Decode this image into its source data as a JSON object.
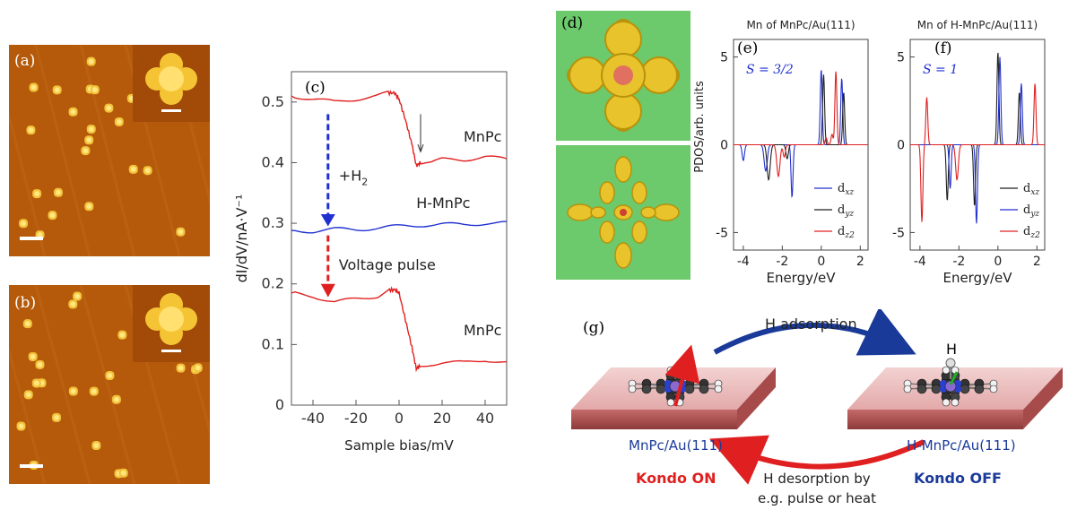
{
  "panels": {
    "a": {
      "label": "(a)"
    },
    "b": {
      "label": "(b)"
    },
    "c": {
      "label": "(c)"
    },
    "d": {
      "label": "(d)"
    },
    "e": {
      "label": "(e)"
    },
    "f": {
      "label": "(f)"
    },
    "g": {
      "label": "(g)"
    }
  },
  "colors": {
    "stm_bg": "#b55a0b",
    "stm_spot": "#ffd84a",
    "red": "#e02020",
    "blue": "#2030d0",
    "black": "#202020",
    "dft_bg": "#6cc96c"
  },
  "panel_c": {
    "annotations": {
      "mnpc_top": "MnPc",
      "h2": "+H",
      "h2_sub": "2",
      "hmnpc": "H-MnPc",
      "pulse": "Voltage pulse",
      "mnpc_bottom": "MnPc"
    }
  },
  "panel_e": {
    "title": "Mn of MnPc/Au(111)",
    "spin": "S = 3/2",
    "legend": [
      "d_xz",
      "d_yz",
      "d_z2"
    ]
  },
  "panel_f": {
    "title": "Mn of H-MnPc/Au(111)",
    "spin": "S = 1",
    "legend": [
      "d_xz",
      "d_yz",
      "d_z2"
    ]
  },
  "panel_g": {
    "h_adsorption": "H adsorption",
    "h_atom": "H",
    "left_substrate": "MnPc/Au(111)",
    "right_substrate": "H-MnPc/Au(111)",
    "kondo_on": "Kondo ON",
    "kondo_off": "Kondo OFF",
    "h_desorption_1": "H desorption by",
    "h_desorption_2": "e.g. pulse or heat"
  },
  "chart_data": [
    {
      "id": "c",
      "type": "line",
      "xlabel": "Sample bias/mV",
      "ylabel": "dI/dV/nA·V⁻¹",
      "xlim": [
        -50,
        50
      ],
      "ylim": [
        0,
        0.55
      ],
      "xticks": [
        -40,
        -20,
        0,
        20,
        40
      ],
      "yticks": [
        0,
        0.1,
        0.2,
        0.3,
        0.4,
        0.5
      ],
      "series": [
        {
          "name": "MnPc",
          "color": "#e02020",
          "x": [
            -50,
            -40,
            -30,
            -20,
            -10,
            -5,
            -2,
            0,
            3,
            6,
            8,
            10,
            15,
            20,
            30,
            40,
            50
          ],
          "y": [
            0.51,
            0.505,
            0.5,
            0.505,
            0.51,
            0.515,
            0.515,
            0.505,
            0.47,
            0.43,
            0.395,
            0.4,
            0.4,
            0.405,
            0.405,
            0.41,
            0.405
          ]
        },
        {
          "name": "H-MnPc",
          "color": "#2030d0",
          "x": [
            -50,
            -40,
            -30,
            -20,
            -10,
            0,
            10,
            20,
            30,
            40,
            50
          ],
          "y": [
            0.288,
            0.287,
            0.29,
            0.29,
            0.292,
            0.295,
            0.297,
            0.298,
            0.298,
            0.3,
            0.3
          ]
        },
        {
          "name": "MnPc",
          "color": "#e02020",
          "x": [
            -50,
            -40,
            -30,
            -20,
            -10,
            -5,
            -2,
            0,
            3,
            6,
            8,
            10,
            15,
            20,
            30,
            40,
            50
          ],
          "y": [
            0.185,
            0.18,
            0.17,
            0.175,
            0.18,
            0.19,
            0.19,
            0.185,
            0.14,
            0.095,
            0.06,
            0.065,
            0.068,
            0.07,
            0.07,
            0.075,
            0.07
          ]
        }
      ]
    },
    {
      "id": "e",
      "type": "line",
      "title": "Mn of MnPc/Au(111)",
      "xlabel": "Energy/eV",
      "ylabel": "PDOS/arb. units",
      "xlim": [
        -4.5,
        2.4
      ],
      "ylim": [
        -6,
        6
      ],
      "xticks": [
        -4,
        -2,
        0,
        2
      ],
      "yticks": [
        -5,
        0,
        5
      ],
      "series": [
        {
          "name": "d_xz",
          "color": "#2030d0",
          "peaks": [
            [
              -4.0,
              -0.9,
              0.06
            ],
            [
              -2.85,
              -1.5,
              0.08
            ],
            [
              -1.5,
              -3.0,
              0.05
            ],
            [
              0.0,
              4.3,
              0.05
            ],
            [
              1.05,
              3.8,
              0.05
            ]
          ]
        },
        {
          "name": "d_yz",
          "color": "#202020",
          "peaks": [
            [
              -2.7,
              -2.0,
              0.08
            ],
            [
              -1.75,
              -0.8,
              0.06
            ],
            [
              0.12,
              4.0,
              0.05
            ],
            [
              1.15,
              3.0,
              0.05
            ]
          ]
        },
        {
          "name": "d_z2",
          "color": "#e02020",
          "peaks": [
            [
              -2.2,
              -1.8,
              0.08
            ],
            [
              -1.9,
              -0.7,
              0.06
            ],
            [
              0.25,
              0.4,
              0.05
            ],
            [
              0.55,
              0.6,
              0.05
            ],
            [
              0.75,
              4.2,
              0.05
            ]
          ]
        }
      ]
    },
    {
      "id": "f",
      "type": "line",
      "title": "Mn of H-MnPc/Au(111)",
      "xlabel": "Energy/eV",
      "ylabel": "",
      "xlim": [
        -4.5,
        2.4
      ],
      "ylim": [
        -6,
        6
      ],
      "xticks": [
        -4,
        -2,
        0,
        2
      ],
      "yticks": [
        -5,
        0,
        5
      ],
      "series": [
        {
          "name": "d_xz",
          "color": "#202020",
          "peaks": [
            [
              -2.6,
              -3.2,
              0.05
            ],
            [
              -1.2,
              -3.5,
              0.05
            ],
            [
              0.0,
              5.3,
              0.05
            ],
            [
              1.1,
              3.0,
              0.05
            ]
          ]
        },
        {
          "name": "d_yz",
          "color": "#2030d0",
          "peaks": [
            [
              -2.45,
              -2.5,
              0.05
            ],
            [
              -1.1,
              -4.5,
              0.05
            ],
            [
              0.1,
              5.0,
              0.05
            ],
            [
              1.2,
              3.5,
              0.05
            ]
          ]
        },
        {
          "name": "d_z2",
          "color": "#e02020",
          "peaks": [
            [
              -3.9,
              -4.4,
              0.05
            ],
            [
              -3.65,
              2.7,
              0.05
            ],
            [
              -2.1,
              -2.0,
              0.07
            ],
            [
              1.9,
              3.5,
              0.05
            ]
          ]
        }
      ]
    }
  ]
}
